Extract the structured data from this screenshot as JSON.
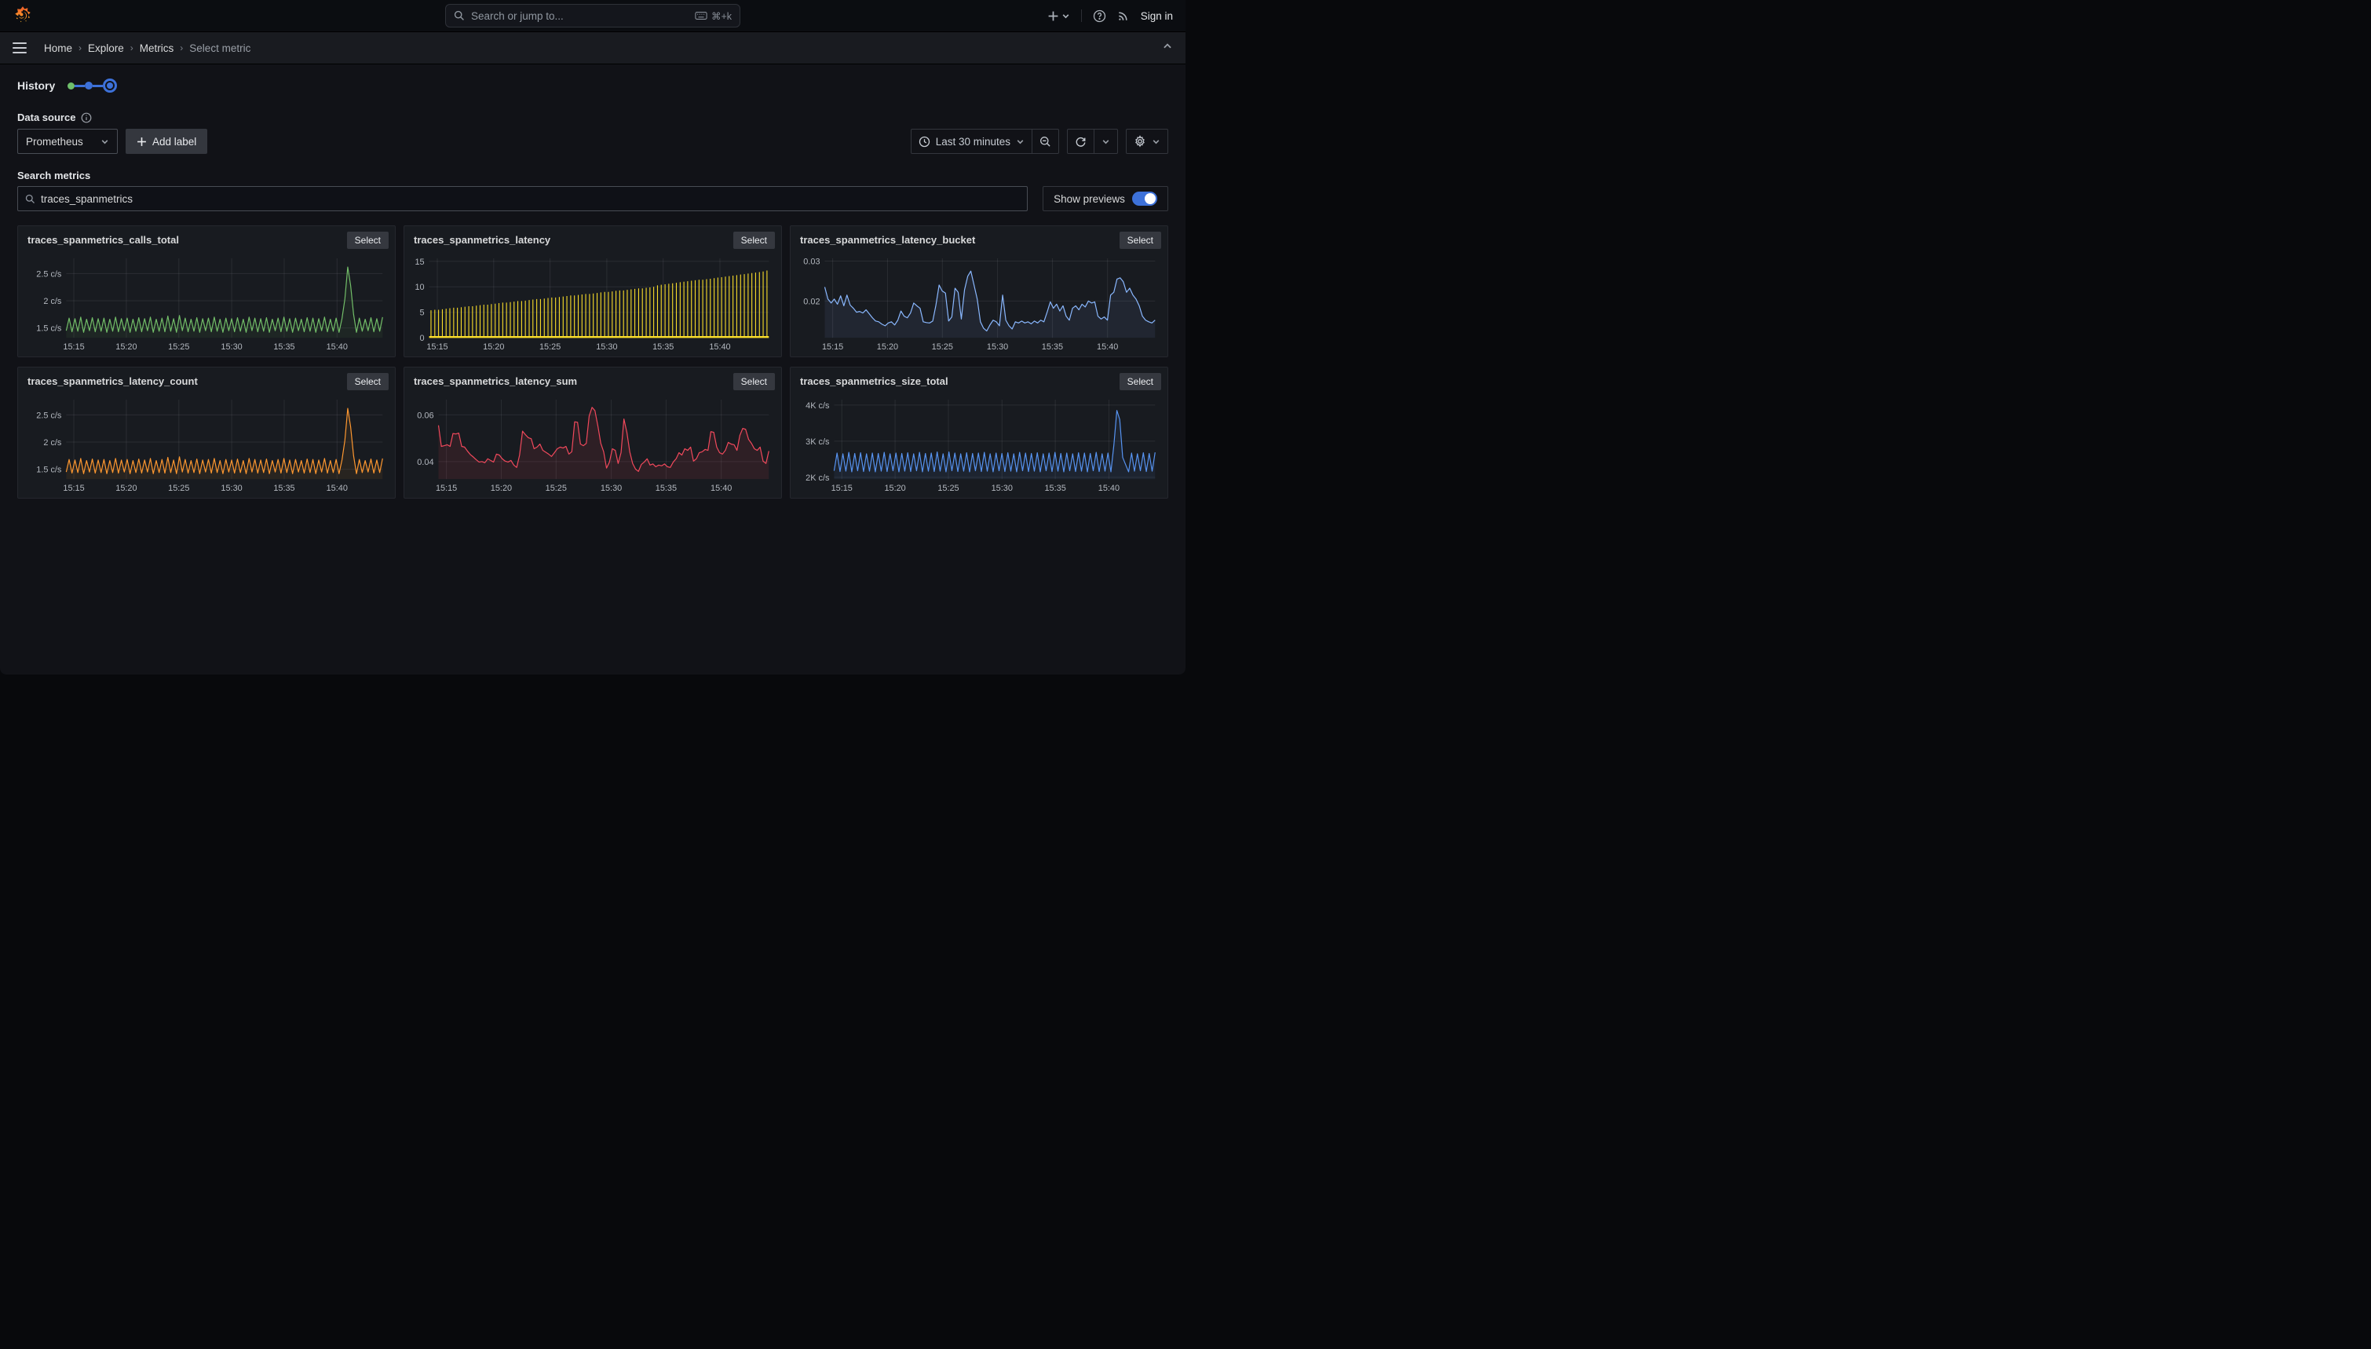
{
  "topbar": {
    "search_placeholder": "Search or jump to...",
    "shortcut": "⌘+k",
    "sign_in": "Sign in"
  },
  "breadcrumbs": {
    "items": [
      "Home",
      "Explore",
      "Metrics"
    ],
    "current": "Select metric",
    "separator": "›"
  },
  "history": {
    "label": "History"
  },
  "datasource": {
    "label": "Data source",
    "value": "Prometheus",
    "add_label": "Add label"
  },
  "time_controls": {
    "range": "Last 30 minutes"
  },
  "search": {
    "label": "Search metrics",
    "value": "traces_spanmetrics",
    "show_previews": "Show previews"
  },
  "panels": {
    "select_label": "Select"
  },
  "accent": {
    "blue": "#3d71d9",
    "green": "#6fbf6b"
  },
  "chart_data": {
    "xaxis": {
      "labels": [
        "15:15",
        "15:20",
        "15:25",
        "15:30",
        "15:35",
        "15:40"
      ],
      "fracs": [
        0.024,
        0.19,
        0.356,
        0.523,
        0.689,
        0.856
      ]
    },
    "charts": [
      {
        "type": "line",
        "title": "traces_spanmetrics_calls_total",
        "color": "#73BF69",
        "fill_opacity": 0.07,
        "ylim": [
          1.32,
          2.78
        ],
        "yticks": [
          {
            "label": "1.5 c/s",
            "value": 1.5
          },
          {
            "label": "2 c/s",
            "value": 2
          },
          {
            "label": "2.5 c/s",
            "value": 2.5
          }
        ],
        "values": [
          1.45,
          1.68,
          1.43,
          1.67,
          1.44,
          1.7,
          1.42,
          1.66,
          1.45,
          1.69,
          1.43,
          1.67,
          1.44,
          1.68,
          1.42,
          1.66,
          1.44,
          1.7,
          1.43,
          1.67,
          1.45,
          1.68,
          1.42,
          1.66,
          1.44,
          1.69,
          1.43,
          1.67,
          1.45,
          1.7,
          1.42,
          1.66,
          1.44,
          1.68,
          1.43,
          1.72,
          1.44,
          1.67,
          1.42,
          1.73,
          1.45,
          1.68,
          1.43,
          1.66,
          1.44,
          1.69,
          1.42,
          1.67,
          1.45,
          1.68,
          1.43,
          1.7,
          1.44,
          1.66,
          1.42,
          1.68,
          1.45,
          1.67,
          1.43,
          1.69,
          1.44,
          1.66,
          1.42,
          1.7,
          1.45,
          1.68,
          1.43,
          1.67,
          1.44,
          1.69,
          1.42,
          1.66,
          1.45,
          1.68,
          1.43,
          1.7,
          1.44,
          1.67,
          1.42,
          1.68,
          1.45,
          1.66,
          1.43,
          1.69,
          1.44,
          1.68,
          1.42,
          1.67,
          1.45,
          1.7,
          1.43,
          1.66,
          1.44,
          1.68,
          1.42,
          1.67,
          2.03,
          2.62,
          2.28,
          1.75,
          1.42,
          1.68,
          1.44,
          1.66,
          1.45,
          1.69,
          1.43,
          1.67,
          1.44,
          1.7
        ]
      },
      {
        "type": "comb",
        "title": "traces_spanmetrics_latency",
        "color": "#FADE2A",
        "baseline": 0.15,
        "ylim": [
          0,
          15.6
        ],
        "yticks": [
          {
            "label": "0",
            "value": 0
          },
          {
            "label": "5",
            "value": 5
          },
          {
            "label": "10",
            "value": 10
          },
          {
            "label": "15",
            "value": 15
          }
        ],
        "tops": [
          5.4,
          5.5,
          5.5,
          5.6,
          5.7,
          5.8,
          5.9,
          5.9,
          6.0,
          6.1,
          6.2,
          6.2,
          6.3,
          6.4,
          6.5,
          6.5,
          6.6,
          6.7,
          6.8,
          6.9,
          6.9,
          7.0,
          7.1,
          7.2,
          7.2,
          7.3,
          7.4,
          7.5,
          7.6,
          7.6,
          7.7,
          7.8,
          7.9,
          7.9,
          8.0,
          8.1,
          8.2,
          8.3,
          8.3,
          8.4,
          8.5,
          8.6,
          8.6,
          8.7,
          8.8,
          8.9,
          9.0,
          9.0,
          9.1,
          9.2,
          9.3,
          9.3,
          9.4,
          9.5,
          9.6,
          9.7,
          9.7,
          9.8,
          9.9,
          10.0,
          10.3,
          10.4,
          10.5,
          10.6,
          10.7,
          10.8,
          10.9,
          11.0,
          11.1,
          11.2,
          11.3,
          11.4,
          11.4,
          11.5,
          11.6,
          11.7,
          11.8,
          11.9,
          12.0,
          12.1,
          12.2,
          12.3,
          12.4,
          12.5,
          12.6,
          12.7,
          12.8,
          12.9,
          13.0,
          13.2
        ]
      },
      {
        "type": "line",
        "title": "traces_spanmetrics_latency_bucket",
        "color": "#8AB8FF",
        "fill_opacity": 0.08,
        "ylim": [
          0.0108,
          0.0307
        ],
        "yticks": [
          {
            "label": "0.02",
            "value": 0.02
          },
          {
            "label": "0.03",
            "value": 0.03
          }
        ],
        "values": [
          0.0235,
          0.0205,
          0.0195,
          0.0205,
          0.0192,
          0.0213,
          0.0188,
          0.0215,
          0.019,
          0.0182,
          0.0172,
          0.0174,
          0.017,
          0.0178,
          0.0168,
          0.0158,
          0.015,
          0.0148,
          0.0142,
          0.0138,
          0.0145,
          0.0148,
          0.014,
          0.0152,
          0.0175,
          0.0162,
          0.0158,
          0.017,
          0.0195,
          0.0188,
          0.0182,
          0.0148,
          0.0146,
          0.0145,
          0.015,
          0.019,
          0.024,
          0.0225,
          0.022,
          0.015,
          0.016,
          0.0232,
          0.0222,
          0.0155,
          0.0228,
          0.0262,
          0.0275,
          0.024,
          0.0205,
          0.0148,
          0.0132,
          0.0125,
          0.014,
          0.0152,
          0.0148,
          0.0138,
          0.0215,
          0.0152,
          0.0138,
          0.013,
          0.0148,
          0.0145,
          0.015,
          0.0145,
          0.0148,
          0.0143,
          0.015,
          0.0145,
          0.0152,
          0.0148,
          0.0172,
          0.0198,
          0.0182,
          0.0192,
          0.0175,
          0.0188,
          0.0162,
          0.0152,
          0.0182,
          0.0188,
          0.0178,
          0.0192,
          0.0185,
          0.02,
          0.0195,
          0.0198,
          0.0162,
          0.0155,
          0.016,
          0.0152,
          0.0215,
          0.0222,
          0.0255,
          0.0258,
          0.0248,
          0.0222,
          0.0232,
          0.0215,
          0.0205,
          0.0188,
          0.0162,
          0.0152,
          0.0148,
          0.0145,
          0.0152
        ]
      },
      {
        "type": "line",
        "title": "traces_spanmetrics_latency_count",
        "color": "#FF9830",
        "fill_opacity": 0.07,
        "ylim": [
          1.32,
          2.78
        ],
        "yticks": [
          {
            "label": "1.5 c/s",
            "value": 1.5
          },
          {
            "label": "2 c/s",
            "value": 2
          },
          {
            "label": "2.5 c/s",
            "value": 2.5
          }
        ],
        "values": [
          1.45,
          1.68,
          1.43,
          1.67,
          1.44,
          1.7,
          1.42,
          1.66,
          1.45,
          1.69,
          1.43,
          1.67,
          1.44,
          1.68,
          1.42,
          1.66,
          1.44,
          1.7,
          1.43,
          1.67,
          1.45,
          1.68,
          1.42,
          1.66,
          1.44,
          1.69,
          1.43,
          1.67,
          1.45,
          1.7,
          1.42,
          1.66,
          1.44,
          1.68,
          1.43,
          1.72,
          1.44,
          1.67,
          1.42,
          1.73,
          1.45,
          1.68,
          1.43,
          1.66,
          1.44,
          1.69,
          1.42,
          1.67,
          1.45,
          1.68,
          1.43,
          1.7,
          1.44,
          1.66,
          1.42,
          1.68,
          1.45,
          1.67,
          1.43,
          1.69,
          1.44,
          1.66,
          1.42,
          1.7,
          1.45,
          1.68,
          1.43,
          1.67,
          1.44,
          1.69,
          1.42,
          1.66,
          1.45,
          1.68,
          1.43,
          1.7,
          1.44,
          1.67,
          1.42,
          1.68,
          1.45,
          1.66,
          1.43,
          1.69,
          1.44,
          1.68,
          1.42,
          1.67,
          1.45,
          1.7,
          1.43,
          1.66,
          1.44,
          1.68,
          1.42,
          1.67,
          2.03,
          2.62,
          2.28,
          1.75,
          1.42,
          1.68,
          1.44,
          1.66,
          1.45,
          1.69,
          1.43,
          1.67,
          1.44,
          1.7
        ]
      },
      {
        "type": "line",
        "title": "traces_spanmetrics_latency_sum",
        "color": "#F2495C",
        "fill_opacity": 0.1,
        "ylim": [
          0.0325,
          0.0665
        ],
        "yticks": [
          {
            "label": "0.04",
            "value": 0.04
          },
          {
            "label": "0.06",
            "value": 0.06
          }
        ],
        "values": [
          0.0555,
          0.0465,
          0.0468,
          0.0472,
          0.0465,
          0.052,
          0.0518,
          0.0522,
          0.0465,
          0.0462,
          0.0445,
          0.043,
          0.042,
          0.0408,
          0.0398,
          0.04,
          0.0395,
          0.0412,
          0.0405,
          0.0398,
          0.0432,
          0.0428,
          0.0412,
          0.0402,
          0.0398,
          0.0405,
          0.0385,
          0.0375,
          0.0428,
          0.053,
          0.0515,
          0.0502,
          0.0498,
          0.0455,
          0.0462,
          0.0475,
          0.0448,
          0.044,
          0.0432,
          0.0422,
          0.0438,
          0.0455,
          0.0462,
          0.0458,
          0.0465,
          0.0432,
          0.0442,
          0.057,
          0.0568,
          0.0475,
          0.0468,
          0.0478,
          0.0595,
          0.0632,
          0.0618,
          0.0552,
          0.0478,
          0.0442,
          0.0372,
          0.0398,
          0.0455,
          0.0448,
          0.0392,
          0.0438,
          0.0582,
          0.0525,
          0.0442,
          0.0392,
          0.0368,
          0.0358,
          0.0388,
          0.0398,
          0.0412,
          0.0385,
          0.039,
          0.0378,
          0.0385,
          0.0382,
          0.039,
          0.0378,
          0.0375,
          0.0398,
          0.0412,
          0.0438,
          0.0428,
          0.0455,
          0.0448,
          0.0462,
          0.0402,
          0.0412,
          0.0438,
          0.0442,
          0.0452,
          0.0448,
          0.0528,
          0.0525,
          0.0462,
          0.0438,
          0.0432,
          0.0448,
          0.0482,
          0.0475,
          0.0472,
          0.0448,
          0.0512,
          0.0542,
          0.0538,
          0.0495,
          0.0478,
          0.0455,
          0.0448,
          0.0462,
          0.0402,
          0.0392,
          0.0445
        ]
      },
      {
        "type": "line",
        "title": "traces_spanmetrics_size_total",
        "color": "#5794F2",
        "fill_opacity": 0.08,
        "ylim": [
          1950,
          4150
        ],
        "yticks": [
          {
            "label": "2K c/s",
            "value": 2000
          },
          {
            "label": "3K c/s",
            "value": 3000
          },
          {
            "label": "4K c/s",
            "value": 4000
          }
        ],
        "values": [
          2180,
          2670,
          2160,
          2650,
          2170,
          2690,
          2150,
          2660,
          2180,
          2680,
          2160,
          2650,
          2170,
          2670,
          2150,
          2660,
          2170,
          2690,
          2160,
          2650,
          2180,
          2670,
          2150,
          2660,
          2170,
          2680,
          2160,
          2650,
          2180,
          2690,
          2150,
          2660,
          2170,
          2670,
          2160,
          2700,
          2170,
          2650,
          2150,
          2700,
          2180,
          2670,
          2160,
          2650,
          2170,
          2680,
          2150,
          2660,
          2180,
          2670,
          2160,
          2690,
          2170,
          2650,
          2150,
          2670,
          2180,
          2660,
          2160,
          2680,
          2170,
          2650,
          2150,
          2690,
          2180,
          2670,
          2160,
          2660,
          2170,
          2680,
          2150,
          2650,
          2180,
          2670,
          2160,
          2690,
          2170,
          2660,
          2150,
          2670,
          2180,
          2650,
          2160,
          2680,
          2170,
          2670,
          2150,
          2660,
          2180,
          2690,
          2160,
          2650,
          2170,
          2670,
          2150,
          2900,
          3850,
          3600,
          2550,
          2350,
          2150,
          2670,
          2170,
          2650,
          2180,
          2680,
          2160,
          2660,
          2170,
          2690
        ]
      }
    ]
  }
}
